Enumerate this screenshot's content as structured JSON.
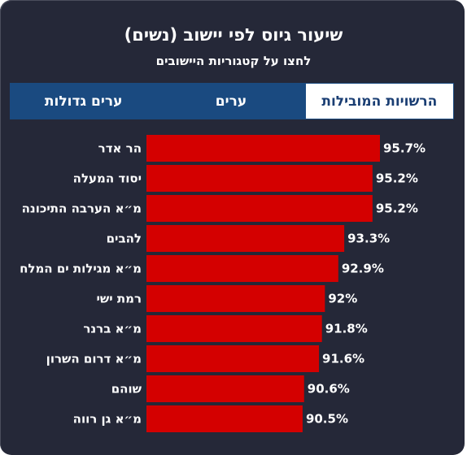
{
  "header": {
    "title": "שיעור גיוס לפי יישוב (נשים)",
    "subtitle": "לחצו על קטגוריות היישובים"
  },
  "tabs": [
    {
      "label": "ערים גדולות",
      "active": false
    },
    {
      "label": "ערים",
      "active": false
    },
    {
      "label": "הרשויות המובילות",
      "active": true
    }
  ],
  "colors": {
    "background": "#252838",
    "bar": "#d40000",
    "tab": "#1a4a80",
    "tab_active": "#ffffff"
  },
  "chart_data": {
    "type": "bar",
    "orientation": "horizontal",
    "categories": [
      "הר אדר",
      "יסוד המעלה",
      "מ״א הערבה התיכונה",
      "להבים",
      "מ״א מגילות ים המלח",
      "רמת ישי",
      "מ״א ברנר",
      "מ״א דרום השרון",
      "שוהם",
      "מ״א גן רווה"
    ],
    "values": [
      95.7,
      95.2,
      95.2,
      93.3,
      92.9,
      92,
      91.8,
      91.6,
      90.6,
      90.5
    ],
    "value_labels": [
      "95.7%",
      "95.2%",
      "95.2%",
      "93.3%",
      "92.9%",
      "92%",
      "91.8%",
      "91.6%",
      "90.6%",
      "90.5%"
    ],
    "xlim": [
      80,
      96.5
    ]
  }
}
